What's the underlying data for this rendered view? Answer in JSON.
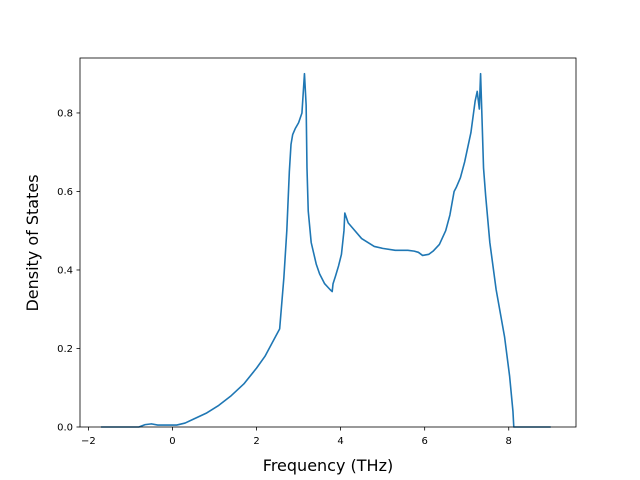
{
  "chart_data": {
    "type": "line",
    "title": "",
    "xlabel": "Frequency (THz)",
    "ylabel": "Density of States",
    "xlim": [
      -2.2,
      9.6
    ],
    "ylim": [
      0.0,
      0.94
    ],
    "xticks": [
      -2,
      0,
      2,
      4,
      6,
      8
    ],
    "xtick_labels": [
      "−2",
      "0",
      "2",
      "4",
      "6",
      "8"
    ],
    "yticks": [
      0.0,
      0.2,
      0.4,
      0.6,
      0.8
    ],
    "ytick_labels": [
      "0.0",
      "0.2",
      "0.4",
      "0.6",
      "0.8"
    ],
    "grid": false,
    "legend": "none",
    "series": [
      {
        "color": "#1f77b4",
        "x": [
          -1.7,
          -0.8,
          -0.65,
          -0.5,
          -0.35,
          -0.1,
          0.1,
          0.3,
          0.5,
          0.8,
          1.1,
          1.4,
          1.7,
          2.0,
          2.2,
          2.4,
          2.55,
          2.65,
          2.72,
          2.78,
          2.82,
          2.86,
          2.92,
          3.0,
          3.08,
          3.14,
          3.18,
          3.2,
          3.23,
          3.3,
          3.42,
          3.5,
          3.62,
          3.75,
          3.8,
          3.82,
          3.88,
          3.95,
          4.02,
          4.08,
          4.1,
          4.18,
          4.3,
          4.5,
          4.8,
          5.0,
          5.3,
          5.6,
          5.75,
          5.85,
          5.95,
          6.1,
          6.2,
          6.35,
          6.5,
          6.6,
          6.7,
          6.75,
          6.85,
          6.95,
          7.1,
          7.2,
          7.25,
          7.3,
          7.33,
          7.36,
          7.4,
          7.45,
          7.55,
          7.7,
          7.9,
          8.02,
          8.1,
          8.12,
          8.2,
          9.0
        ],
        "y": [
          0.0,
          0.0,
          0.006,
          0.008,
          0.005,
          0.005,
          0.005,
          0.01,
          0.02,
          0.035,
          0.055,
          0.08,
          0.11,
          0.15,
          0.18,
          0.22,
          0.25,
          0.38,
          0.5,
          0.65,
          0.72,
          0.745,
          0.76,
          0.775,
          0.8,
          0.9,
          0.82,
          0.66,
          0.55,
          0.47,
          0.415,
          0.39,
          0.365,
          0.35,
          0.345,
          0.365,
          0.385,
          0.41,
          0.44,
          0.5,
          0.545,
          0.52,
          0.505,
          0.48,
          0.46,
          0.455,
          0.45,
          0.45,
          0.448,
          0.445,
          0.437,
          0.44,
          0.448,
          0.465,
          0.5,
          0.54,
          0.6,
          0.61,
          0.635,
          0.675,
          0.75,
          0.83,
          0.855,
          0.81,
          0.9,
          0.8,
          0.66,
          0.59,
          0.47,
          0.35,
          0.23,
          0.13,
          0.04,
          0.0,
          0.0,
          0.0
        ]
      }
    ]
  }
}
